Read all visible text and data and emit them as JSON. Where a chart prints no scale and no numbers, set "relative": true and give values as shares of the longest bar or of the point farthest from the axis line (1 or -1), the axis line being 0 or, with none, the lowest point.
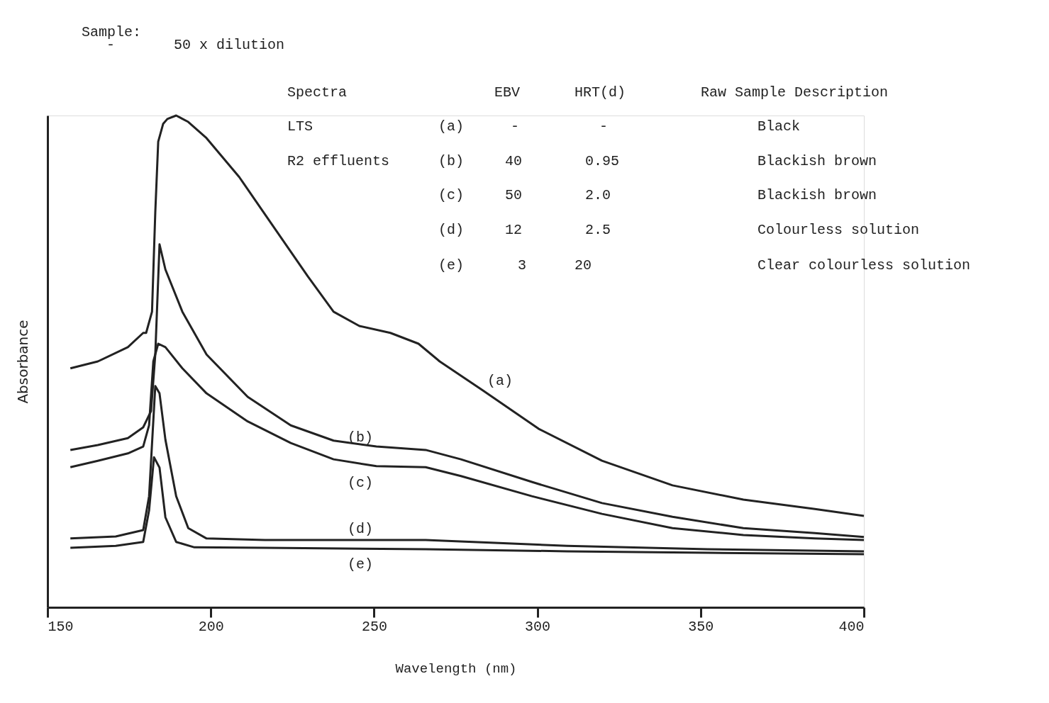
{
  "chart_data": {
    "type": "line",
    "relative": true,
    "xlabel": "Wavelength (nm)",
    "ylabel": "Absorbance",
    "xlim": [
      150,
      400
    ],
    "xticks": [
      150,
      200,
      250,
      300,
      350,
      400
    ],
    "grid": false,
    "series": [
      {
        "name": "(a)",
        "color": "#222222",
        "x": [
          157.0,
          165.4,
          174.6,
          179.3,
          180.2,
          182.0,
          183.0,
          183.9,
          185.4,
          186.7,
          189.4,
          193.1,
          198.7,
          208.7,
          219.2,
          229.7,
          237.6,
          245.5,
          255.0,
          263.6,
          270.1,
          283.1,
          300.4,
          319.8,
          341.4,
          363.1,
          385.0,
          400.0
        ],
        "values": [
          0.486,
          0.5,
          0.529,
          0.558,
          0.558,
          0.601,
          0.803,
          0.947,
          0.983,
          0.993,
          1,
          0.987,
          0.954,
          0.875,
          0.774,
          0.673,
          0.601,
          0.572,
          0.558,
          0.536,
          0.5,
          0.442,
          0.363,
          0.298,
          0.248,
          0.219,
          0.2,
          0.186
        ]
      },
      {
        "name": "(b)",
        "color": "#222222",
        "x": [
          157.0,
          165.4,
          174.6,
          179.3,
          181.7,
          183.0,
          184.3,
          186.1,
          191.3,
          198.7,
          211.3,
          224.5,
          237.6,
          250.7,
          265.8,
          276.6,
          298.3,
          319.8,
          341.4,
          363.1,
          385.0,
          400.0
        ],
        "values": [
          0.32,
          0.33,
          0.344,
          0.366,
          0.399,
          0.514,
          0.738,
          0.687,
          0.601,
          0.514,
          0.428,
          0.37,
          0.339,
          0.327,
          0.32,
          0.301,
          0.255,
          0.212,
          0.184,
          0.161,
          0.151,
          0.143
        ]
      },
      {
        "name": "(c)",
        "color": "#222222",
        "x": [
          157.0,
          165.4,
          174.6,
          179.3,
          181.1,
          182.4,
          183.9,
          186.1,
          191.3,
          198.7,
          211.3,
          224.5,
          237.6,
          250.7,
          265.8,
          276.6,
          298.3,
          319.8,
          341.4,
          363.1,
          385.0,
          400.0
        ],
        "values": [
          0.285,
          0.298,
          0.313,
          0.327,
          0.37,
          0.5,
          0.536,
          0.529,
          0.486,
          0.435,
          0.378,
          0.334,
          0.301,
          0.287,
          0.285,
          0.267,
          0.226,
          0.19,
          0.161,
          0.147,
          0.14,
          0.137
        ]
      },
      {
        "name": "(d)",
        "color": "#222222",
        "x": [
          157.0,
          170.9,
          179.3,
          181.1,
          183.0,
          184.3,
          186.1,
          189.4,
          193.1,
          198.7,
          216.6,
          265.8,
          309.1,
          352.2,
          400.0
        ],
        "values": [
          0.14,
          0.144,
          0.157,
          0.226,
          0.45,
          0.435,
          0.341,
          0.226,
          0.161,
          0.14,
          0.137,
          0.137,
          0.125,
          0.118,
          0.114
        ]
      },
      {
        "name": "(e)",
        "color": "#222222",
        "x": [
          157.0,
          170.9,
          179.3,
          181.1,
          182.6,
          184.3,
          186.1,
          189.4,
          195.0,
          216.6,
          265.8,
          309.1,
          352.2,
          400.0
        ],
        "values": [
          0.121,
          0.125,
          0.133,
          0.197,
          0.305,
          0.284,
          0.183,
          0.133,
          0.122,
          0.121,
          0.118,
          0.114,
          0.111,
          0.108
        ]
      }
    ],
    "annotations": [
      "Sample:",
      "-",
      "50 x dilution",
      "Spectra",
      "EBV",
      "HRT(d)",
      "Raw Sample Description",
      "LTS",
      "(a)",
      "-",
      "-",
      "Black",
      "R2 effluents",
      "(b)",
      "40",
      "0.95",
      "Blackish brown",
      "(c)",
      "50",
      "2.0",
      "Blackish brown",
      "(d)",
      "12",
      "2.5",
      "Colourless solution",
      "(e)",
      "3",
      "20",
      "Clear colourless solution"
    ]
  }
}
